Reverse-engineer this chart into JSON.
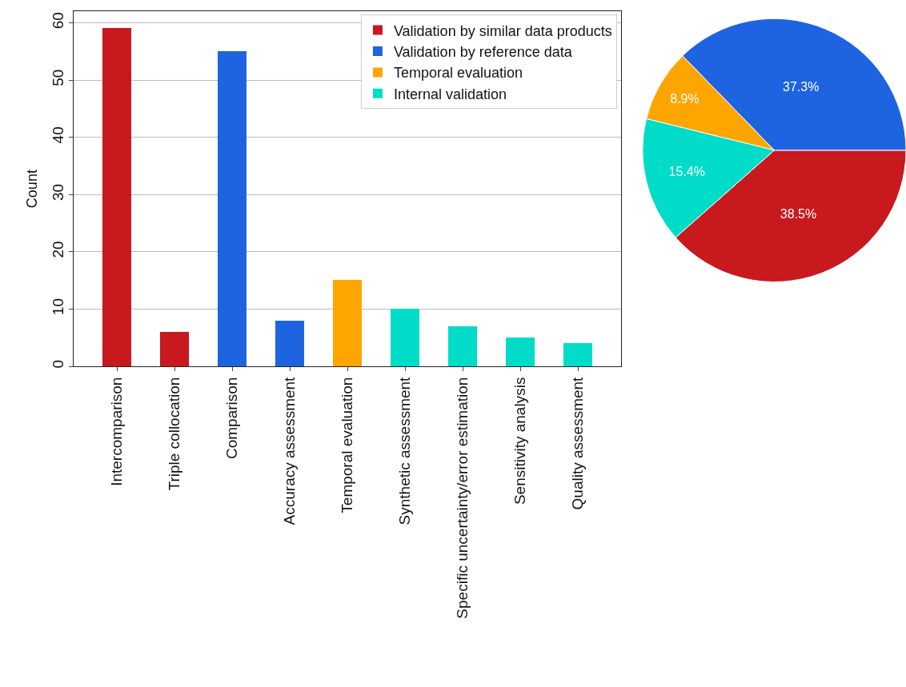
{
  "chart_data": [
    {
      "type": "bar",
      "ylabel": "Count",
      "categories": [
        "Intercomparison",
        "Triple collocation",
        "Comparison",
        "Accuracy assessment",
        "Temporal evaluation",
        "Synthetic assessment",
        "Specific uncertainty/error estimation",
        "Sensitivity analysis",
        "Quality assessment"
      ],
      "series": [
        {
          "name": "Validation by similar data products",
          "color": "#c8191e",
          "values": [
            59,
            6,
            null,
            null,
            null,
            null,
            null,
            null,
            null
          ]
        },
        {
          "name": "Validation by reference data",
          "color": "#1e64e1",
          "values": [
            null,
            null,
            55,
            8,
            null,
            null,
            null,
            null,
            null
          ]
        },
        {
          "name": "Temporal evaluation",
          "color": "#ffa500",
          "values": [
            null,
            null,
            null,
            null,
            15,
            null,
            null,
            null,
            null
          ]
        },
        {
          "name": "Internal validation",
          "color": "#00dcc8",
          "values": [
            null,
            null,
            null,
            null,
            null,
            10,
            7,
            5,
            4
          ]
        }
      ],
      "ylim": [
        0,
        62
      ],
      "yticks": [
        0,
        10,
        20,
        30,
        40,
        50,
        60
      ],
      "grid": "y",
      "legend": "top right"
    },
    {
      "type": "pie",
      "categories": [
        null,
        null,
        null,
        null
      ],
      "values": [
        38.5,
        37.3,
        8.9,
        15.4
      ],
      "colors": [
        "#c8191e",
        "#1e64e1",
        "#ffa500",
        "#00dcc8"
      ],
      "value_labels": [
        "38.5%",
        "37.3%",
        "8.9%",
        "15.4%"
      ]
    }
  ]
}
